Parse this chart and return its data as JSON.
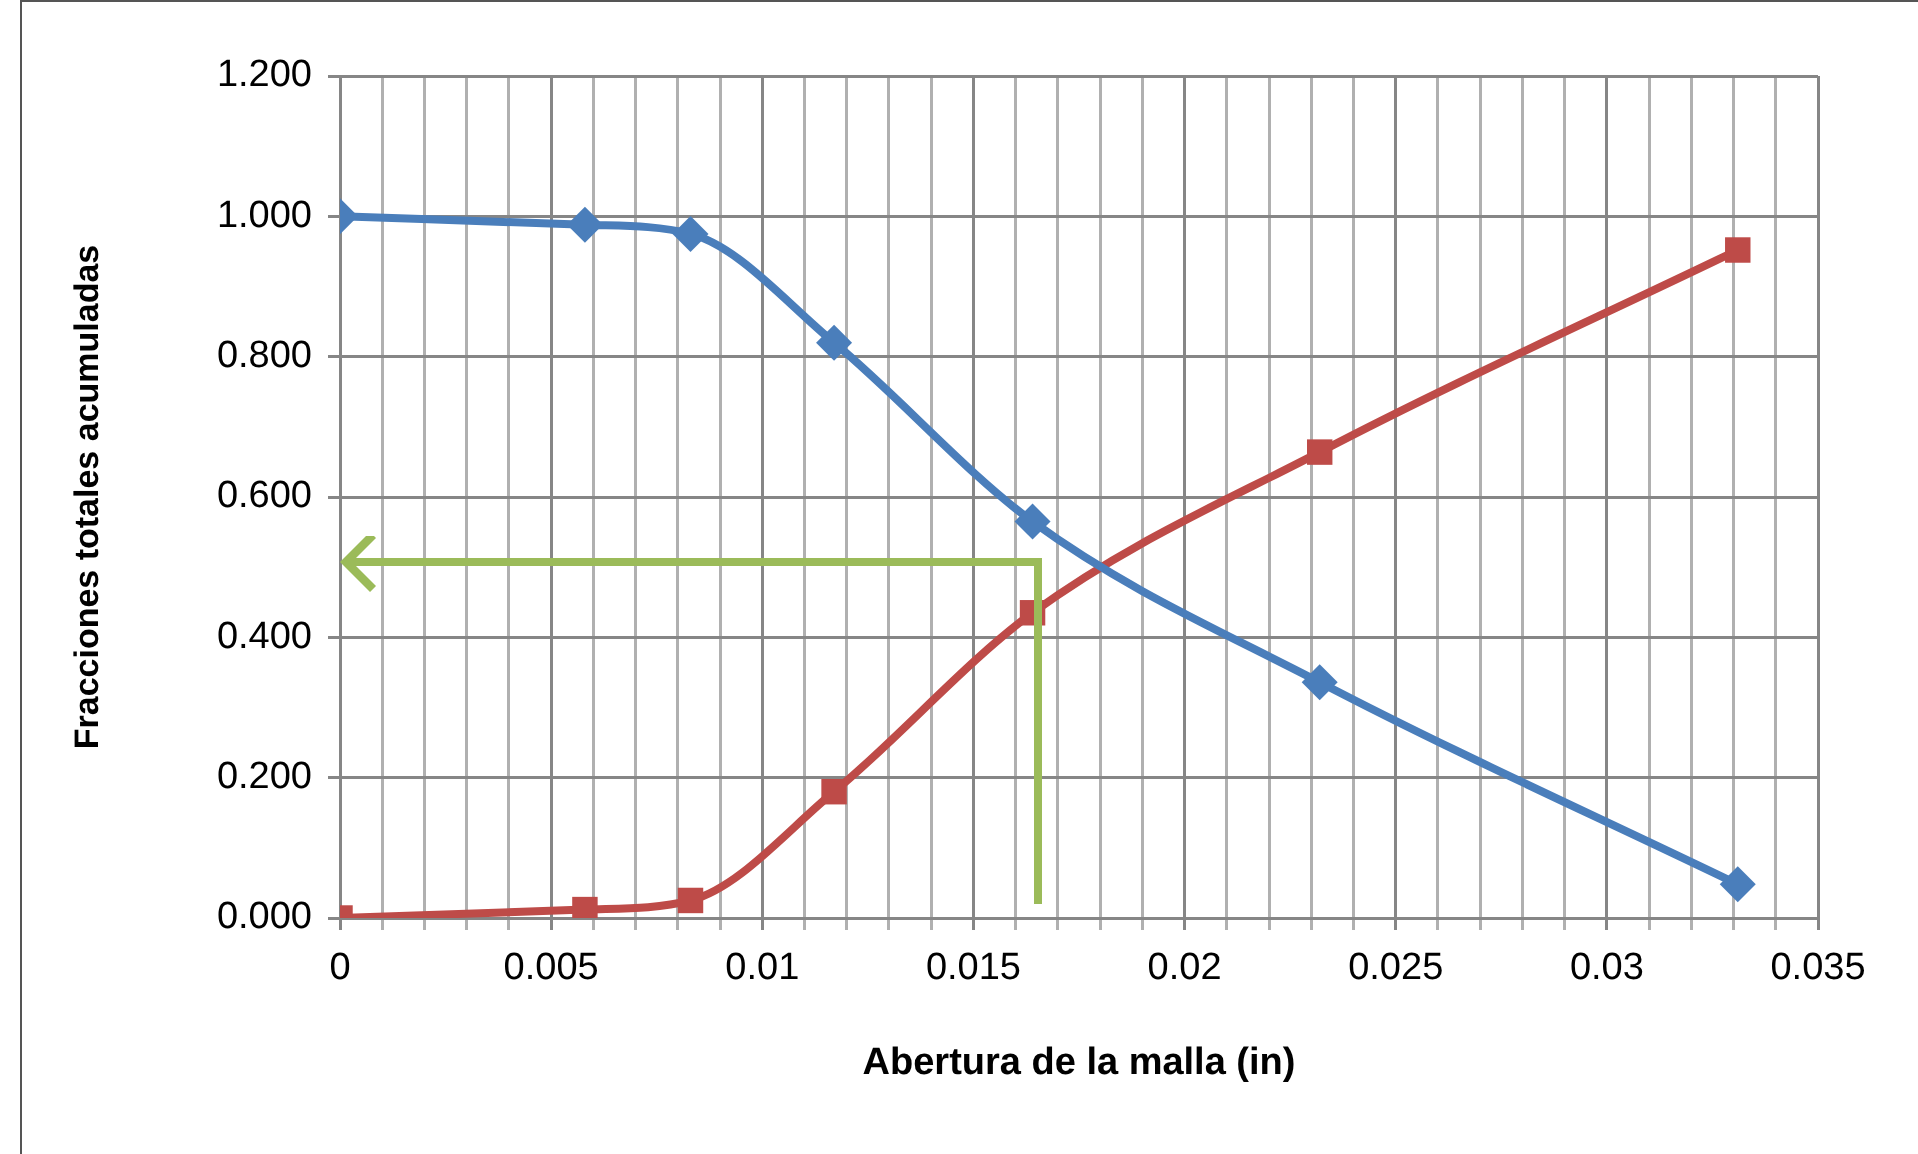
{
  "chart_data": {
    "type": "line",
    "xlabel": "Abertura de la malla (in)",
    "ylabel": "Fracciones totales acumuladas",
    "x": [
      0,
      0.0058,
      0.0083,
      0.0117,
      0.0164,
      0.0232,
      0.0331
    ],
    "series": [
      {
        "color": "#4a7ebb",
        "marker": "diamond",
        "values": [
          1.0,
          0.988,
          0.975,
          0.82,
          0.565,
          0.336,
          0.048
        ]
      },
      {
        "color": "#be4b48",
        "marker": "square",
        "values": [
          0.0,
          0.012,
          0.025,
          0.18,
          0.435,
          0.664,
          0.952
        ]
      }
    ],
    "xlim": [
      0,
      0.035
    ],
    "xticks": [
      0,
      {
        "value": 0.001,
        "label": null
      },
      {
        "value": 0.002,
        "label": null
      },
      {
        "value": 0.003,
        "label": null
      },
      {
        "value": 0.004,
        "label": null
      },
      0.005,
      {
        "value": 0.006,
        "label": null
      },
      {
        "value": 0.007,
        "label": null
      },
      {
        "value": 0.008,
        "label": null
      },
      {
        "value": 0.009,
        "label": null
      },
      0.01,
      {
        "value": 0.011,
        "label": null
      },
      {
        "value": 0.012,
        "label": null
      },
      {
        "value": 0.013,
        "label": null
      },
      {
        "value": 0.014,
        "label": null
      },
      0.015,
      {
        "value": 0.016,
        "label": null
      },
      {
        "value": 0.017,
        "label": null
      },
      {
        "value": 0.018,
        "label": null
      },
      {
        "value": 0.019,
        "label": null
      },
      0.02,
      {
        "value": 0.021,
        "label": null
      },
      {
        "value": 0.022,
        "label": null
      },
      {
        "value": 0.023,
        "label": null
      },
      {
        "value": 0.024,
        "label": null
      },
      0.025,
      {
        "value": 0.026,
        "label": null
      },
      {
        "value": 0.027,
        "label": null
      },
      {
        "value": 0.028,
        "label": null
      },
      {
        "value": 0.029,
        "label": null
      },
      0.03,
      {
        "value": 0.031,
        "label": null
      },
      {
        "value": 0.032,
        "label": null
      },
      {
        "value": 0.033,
        "label": null
      },
      {
        "value": 0.034,
        "label": null
      },
      0.035
    ],
    "ylim": [
      0,
      1.2
    ],
    "yticks": [
      {
        "value": 0,
        "label": "0.000"
      },
      {
        "value": 0.2,
        "label": "0.200"
      },
      {
        "value": 0.4,
        "label": "0.400"
      },
      {
        "value": 0.6,
        "label": "0.600"
      },
      {
        "value": 0.8,
        "label": "0.800"
      },
      {
        "value": 1.0,
        "label": "1.000"
      },
      {
        "value": 1.2,
        "label": "1.200"
      }
    ],
    "grid": true,
    "legend": false,
    "line_style": "solid"
  }
}
